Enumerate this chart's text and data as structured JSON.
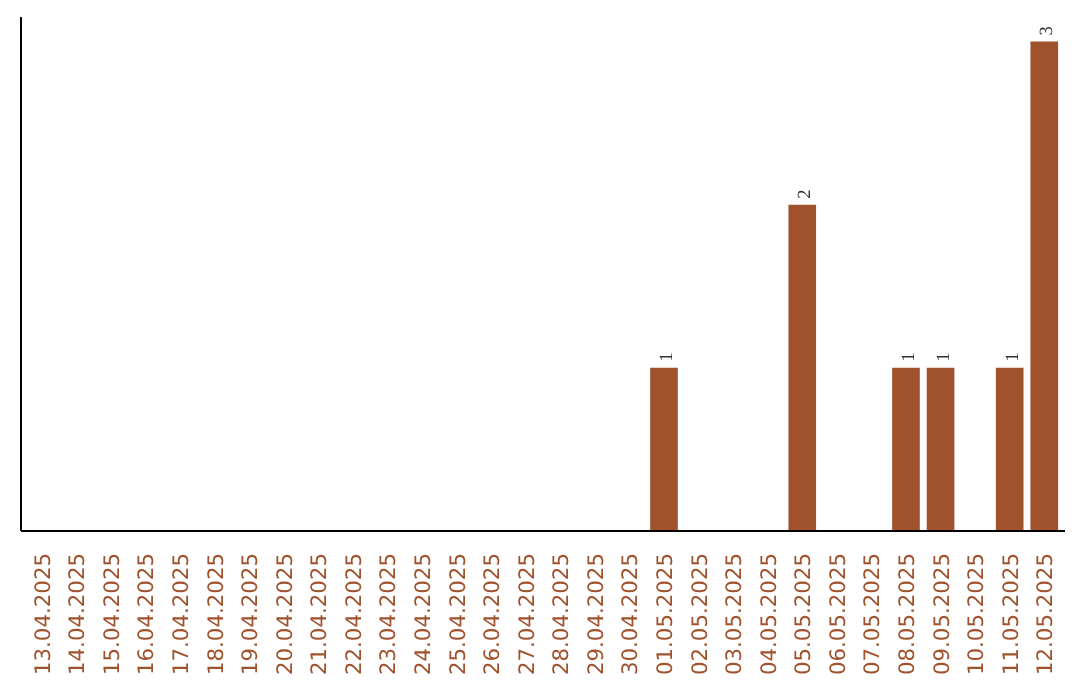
{
  "chart_data": {
    "type": "bar",
    "categories": [
      "13.04.2025",
      "14.04.2025",
      "15.04.2025",
      "16.04.2025",
      "17.04.2025",
      "18.04.2025",
      "19.04.2025",
      "20.04.2025",
      "21.04.2025",
      "22.04.2025",
      "23.04.2025",
      "24.04.2025",
      "25.04.2025",
      "26.04.2025",
      "27.04.2025",
      "28.04.2025",
      "29.04.2025",
      "30.04.2025",
      "01.05.2025",
      "02.05.2025",
      "03.05.2025",
      "04.05.2025",
      "05.05.2025",
      "06.05.2025",
      "07.05.2025",
      "08.05.2025",
      "09.05.2025",
      "10.05.2025",
      "11.05.2025",
      "12.05.2025"
    ],
    "values": [
      null,
      null,
      null,
      null,
      null,
      null,
      null,
      null,
      null,
      null,
      null,
      null,
      null,
      null,
      null,
      null,
      null,
      null,
      1,
      null,
      null,
      null,
      2,
      null,
      null,
      1,
      1,
      null,
      1,
      3
    ],
    "value_labels": [
      null,
      null,
      null,
      null,
      null,
      null,
      null,
      null,
      null,
      null,
      null,
      null,
      null,
      null,
      null,
      null,
      null,
      null,
      "1",
      null,
      null,
      null,
      "2",
      null,
      null,
      "1",
      "1",
      null,
      "1",
      "3"
    ],
    "color": "#a0522d",
    "grid": false,
    "tick_labels": "x"
  }
}
